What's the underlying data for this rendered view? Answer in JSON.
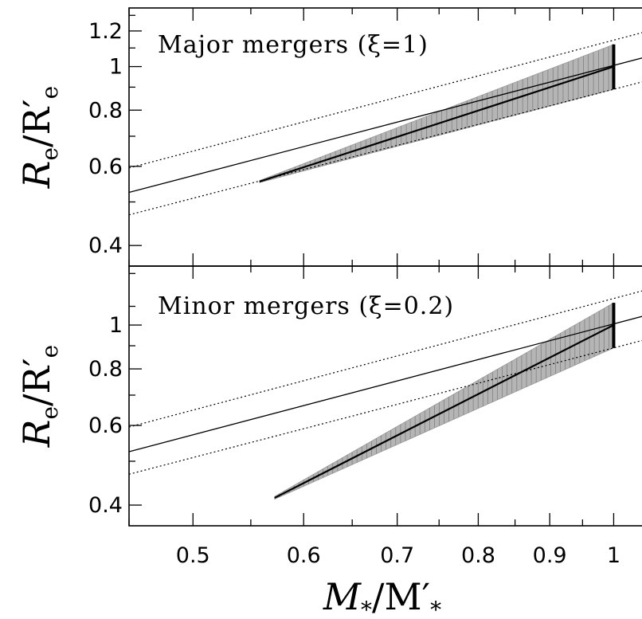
{
  "chart_data": [
    {
      "type": "line",
      "title": "Major mergers (ξ=1)",
      "xlabel": "M*/M′*",
      "ylabel": "Re/R′e",
      "x_scale": "log",
      "y_scale": "log",
      "xlim": [
        0.45,
        1.07
      ],
      "ylim": [
        0.36,
        1.35
      ],
      "x_ticks": [
        0.5,
        0.6,
        0.7,
        0.8,
        0.9,
        1
      ],
      "x_tick_labels": [
        "0.5",
        "0.6",
        "0.7",
        "0.8",
        "0.9",
        "1"
      ],
      "y_ticks": [
        0.4,
        0.6,
        0.8,
        1,
        1.2
      ],
      "y_tick_labels": [
        "0.4",
        "0.6",
        "0.8",
        "1",
        "1.2"
      ],
      "series": [
        {
          "kind": "band",
          "x": [
            0.558,
            1.0
          ],
          "upper": [
            0.558,
            1.12
          ],
          "lower": [
            0.552,
            0.89
          ]
        },
        {
          "kind": "central",
          "x": [
            0.558,
            1.0
          ],
          "y": [
            0.555,
            1.0
          ]
        },
        {
          "kind": "fit",
          "x": [
            0.45,
            1.07
          ],
          "y": [
            0.525,
            1.063
          ]
        },
        {
          "kind": "scatter-upper",
          "x": [
            0.45,
            1.07
          ],
          "y": [
            0.595,
            1.21
          ]
        },
        {
          "kind": "scatter-lower",
          "x": [
            0.45,
            1.07
          ],
          "y": [
            0.468,
            0.94
          ]
        }
      ]
    },
    {
      "type": "line",
      "title": "Minor mergers (ξ=0.2)",
      "xlabel": "M*/M′*",
      "ylabel": "Re/R′e",
      "x_scale": "log",
      "y_scale": "log",
      "xlim": [
        0.45,
        1.07
      ],
      "ylim": [
        0.36,
        1.35
      ],
      "x_ticks": [
        0.5,
        0.6,
        0.7,
        0.8,
        0.9,
        1
      ],
      "x_tick_labels": [
        "0.5",
        "0.6",
        "0.7",
        "0.8",
        "0.9",
        "1"
      ],
      "y_ticks": [
        0.4,
        0.6,
        0.8,
        1
      ],
      "y_tick_labels": [
        "0.4",
        "0.6",
        "0.8",
        "1"
      ],
      "series": [
        {
          "kind": "band",
          "x": [
            0.572,
            1.0
          ],
          "upper": [
            0.418,
            1.12
          ],
          "lower": [
            0.412,
            0.89
          ]
        },
        {
          "kind": "central",
          "x": [
            0.572,
            1.0
          ],
          "y": [
            0.415,
            1.0
          ]
        },
        {
          "kind": "fit",
          "x": [
            0.45,
            1.07
          ],
          "y": [
            0.525,
            1.063
          ]
        },
        {
          "kind": "scatter-upper",
          "x": [
            0.45,
            1.07
          ],
          "y": [
            0.595,
            1.21
          ]
        },
        {
          "kind": "scatter-lower",
          "x": [
            0.45,
            1.07
          ],
          "y": [
            0.468,
            0.94
          ]
        }
      ]
    }
  ]
}
